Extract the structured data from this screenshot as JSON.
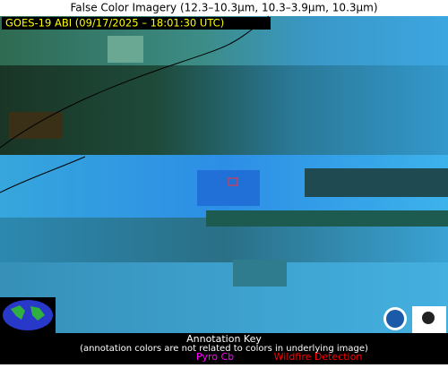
{
  "header": {
    "title": "False Color Imagery (12.3–10.3µm, 10.3–3.9µm, 10.3µm)",
    "subtitle": "GOES-19 ABI (09/17/2025 – 18:01:30 UTC)"
  },
  "annotation_key": {
    "title": "Annotation Key",
    "note": "(annotation colors are not related to colors in underlying image)",
    "items": [
      {
        "label": "Pyro Cb",
        "color": "#ff00ff"
      },
      {
        "label": "Wildfire Detection",
        "color": "#ff0000"
      }
    ]
  }
}
